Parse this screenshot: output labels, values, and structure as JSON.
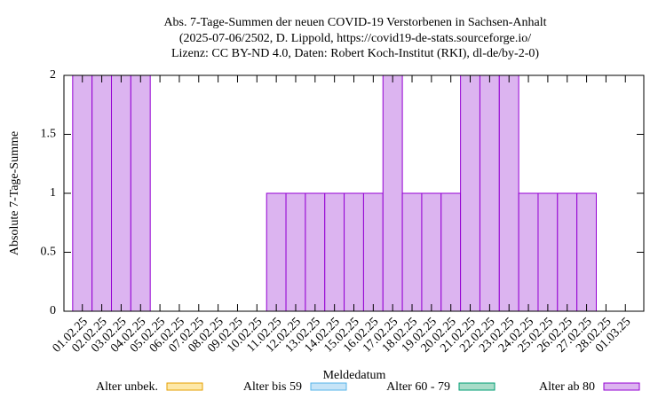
{
  "chart_data": {
    "type": "stacked_bar",
    "title": [
      "Abs. 7-Tage-Summen der neuen COVID-19 Verstorbenen in Sachsen-Anhalt",
      "(2025-07-06/2502, D. Lippold, https://covid19-de-stats.sourceforge.io/",
      "Lizenz: CC BY-ND 4.0, Daten: Robert Koch-Institut (RKI), dl-de/by-2-0)"
    ],
    "x_label": "Meldedatum",
    "y_label": "Absolute 7-Tage-Summe",
    "categories": [
      "01.02.25",
      "02.02.25",
      "03.02.25",
      "04.02.25",
      "05.02.25",
      "06.02.25",
      "07.02.25",
      "08.02.25",
      "09.02.25",
      "10.02.25",
      "11.02.25",
      "12.02.25",
      "13.02.25",
      "14.02.25",
      "15.02.25",
      "16.02.25",
      "17.02.25",
      "18.02.25",
      "19.02.25",
      "20.02.25",
      "21.02.25",
      "22.02.25",
      "23.02.25",
      "24.02.25",
      "25.02.25",
      "26.02.25",
      "27.02.25",
      "28.02.25",
      "01.03.25"
    ],
    "series": [
      {
        "name": "Alter unbek.",
        "color": "#fde8a8",
        "edge_color": "#e69f00",
        "values": [
          0,
          0,
          0,
          0,
          0,
          0,
          0,
          0,
          0,
          0,
          0,
          0,
          0,
          0,
          0,
          0,
          0,
          0,
          0,
          0,
          0,
          0,
          0,
          0,
          0,
          0,
          0,
          0,
          0
        ]
      },
      {
        "name": "Alter bis 59",
        "color": "#c6e4f7",
        "edge_color": "#56b4e9",
        "values": [
          0,
          0,
          0,
          0,
          0,
          0,
          0,
          0,
          0,
          0,
          0,
          0,
          0,
          0,
          0,
          0,
          0,
          0,
          0,
          0,
          0,
          0,
          0,
          0,
          0,
          0,
          0,
          0,
          0
        ]
      },
      {
        "name": "Alter 60 - 79",
        "color": "#a8dcc8",
        "edge_color": "#009e73",
        "values": [
          0,
          0,
          0,
          0,
          0,
          0,
          0,
          0,
          0,
          0,
          0,
          0,
          0,
          0,
          0,
          0,
          0,
          0,
          0,
          0,
          0,
          0,
          0,
          0,
          0,
          0,
          0,
          0,
          0
        ]
      },
      {
        "name": "Alter ab 80",
        "color": "#dcb4f0",
        "edge_color": "#9400d3",
        "values": [
          2,
          2,
          2,
          2,
          0,
          0,
          0,
          0,
          0,
          0,
          1,
          1,
          1,
          1,
          1,
          1,
          2,
          1,
          1,
          1,
          2,
          2,
          2,
          1,
          1,
          1,
          1,
          0,
          0
        ]
      }
    ],
    "ylim": [
      0,
      2
    ],
    "yticks": [
      0,
      0.5,
      1,
      1.5,
      2
    ]
  }
}
